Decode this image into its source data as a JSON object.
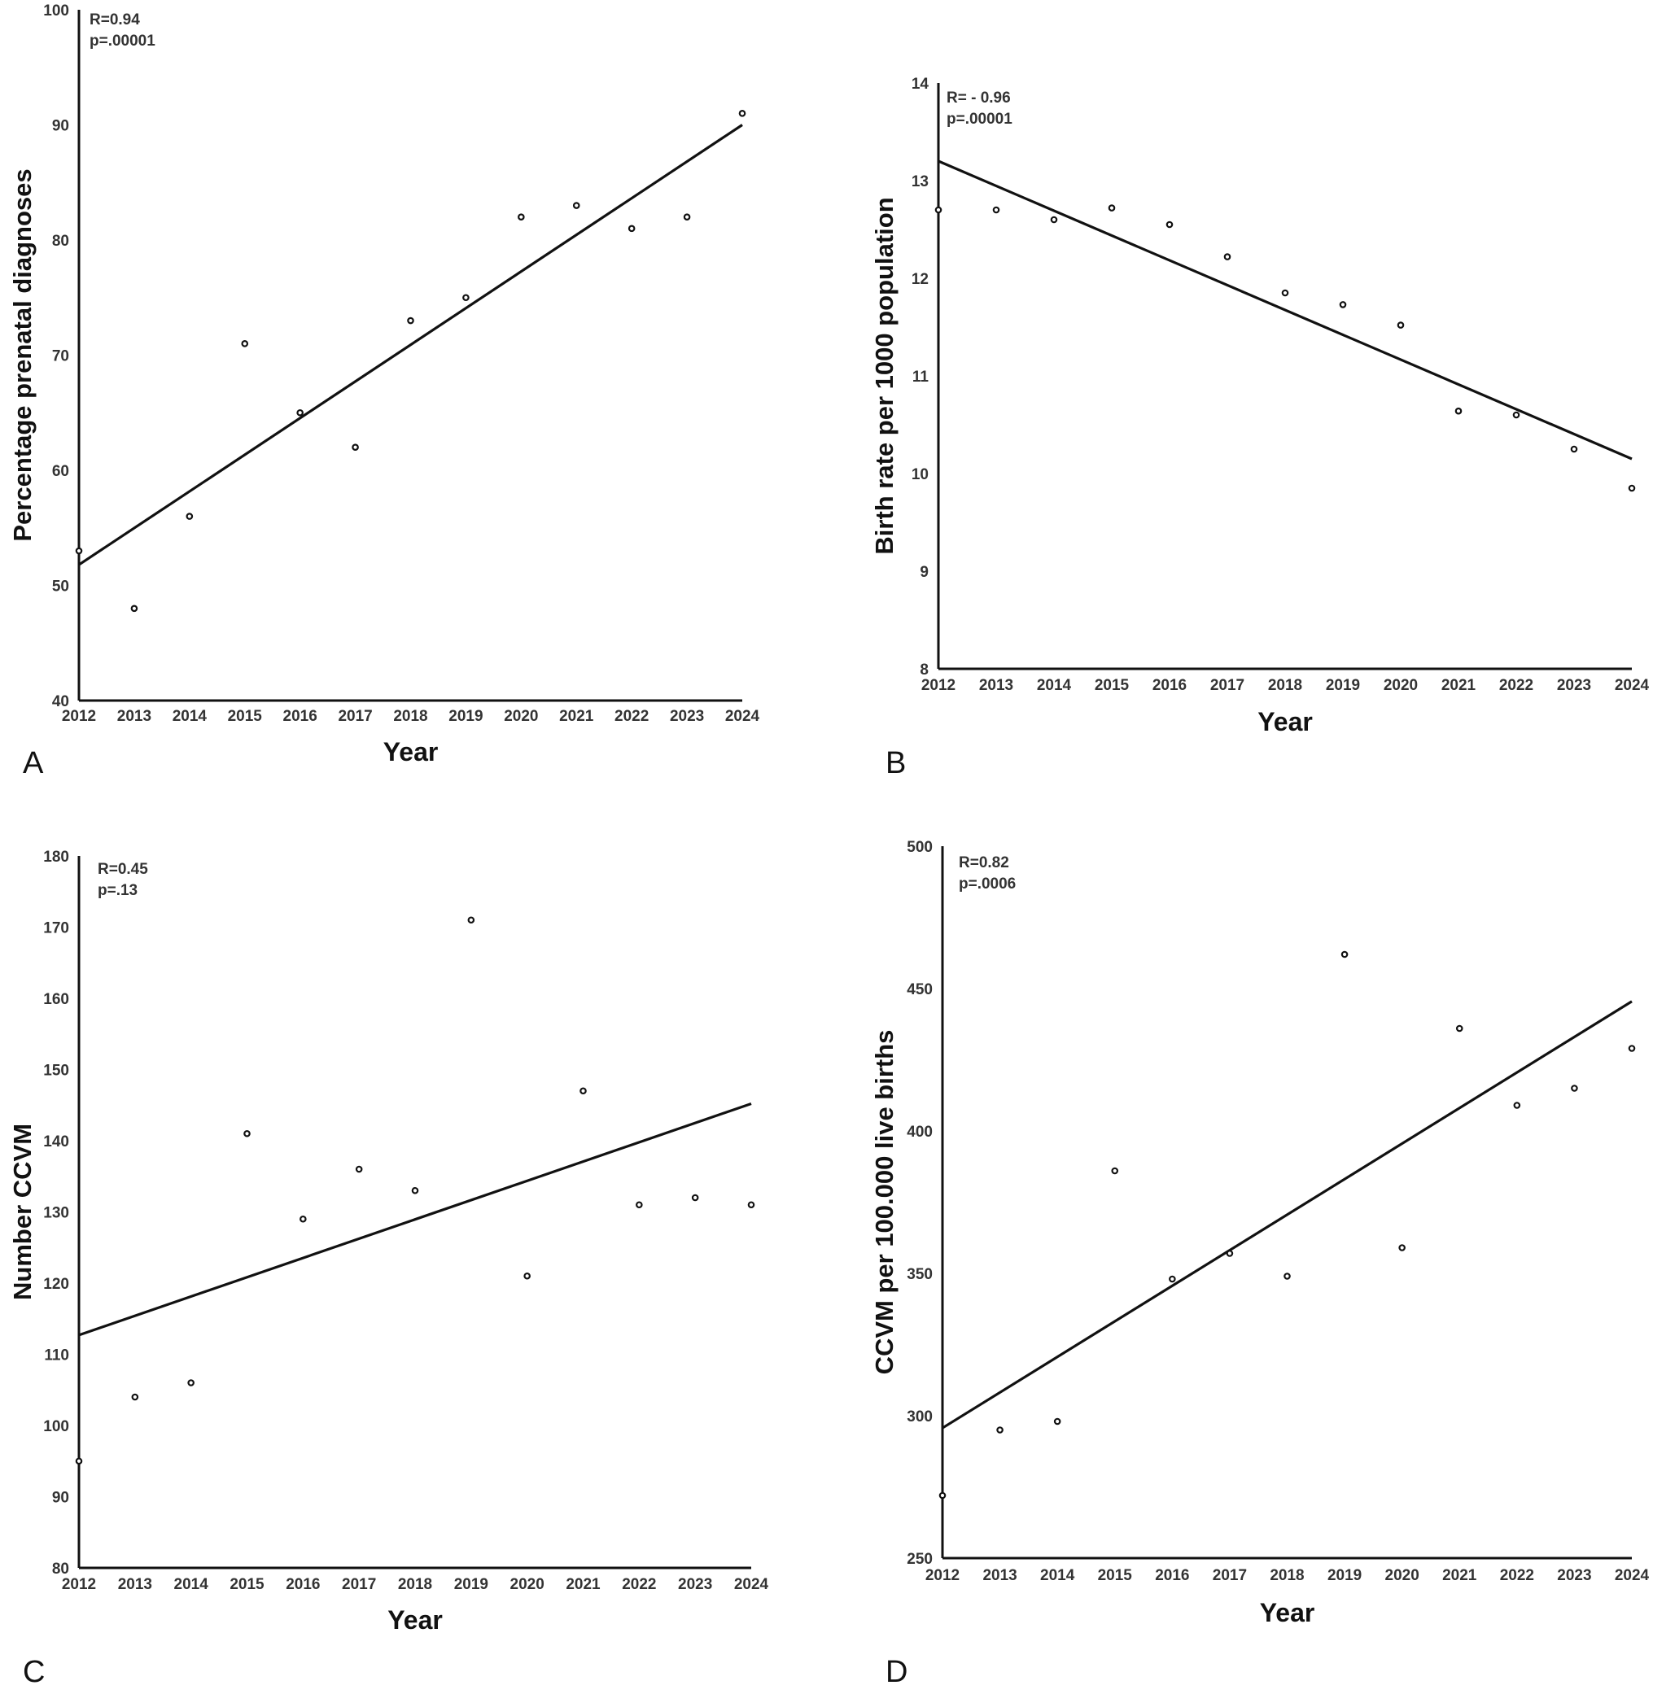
{
  "chart_data": [
    {
      "type": "scatter",
      "panel": "A",
      "xlabel": "Year",
      "ylabel": "Percentage prenatal diagnoses",
      "ylim": [
        40,
        100
      ],
      "yticks": [
        40,
        50,
        60,
        70,
        80,
        90,
        100
      ],
      "x": [
        2012,
        2013,
        2014,
        2015,
        2016,
        2017,
        2018,
        2019,
        2020,
        2021,
        2022,
        2023,
        2024
      ],
      "y": [
        53,
        48,
        56,
        71,
        65,
        62,
        73,
        75,
        82,
        83,
        81,
        82,
        91
      ],
      "trendline": [
        [
          2012,
          51.8
        ],
        [
          2024,
          90.0
        ]
      ],
      "annotation": [
        "R=0.94",
        "p=.00001"
      ]
    },
    {
      "type": "scatter",
      "panel": "B",
      "xlabel": "Year",
      "ylabel": "Birth rate per 1000 population",
      "ylim": [
        8,
        14
      ],
      "yticks": [
        8,
        9,
        10,
        11,
        12,
        13,
        14
      ],
      "x": [
        2012,
        2013,
        2014,
        2015,
        2016,
        2017,
        2018,
        2019,
        2020,
        2021,
        2022,
        2023,
        2024
      ],
      "y": [
        12.7,
        12.7,
        12.6,
        12.72,
        12.55,
        12.22,
        11.85,
        11.73,
        11.52,
        10.64,
        10.6,
        10.25,
        9.85
      ],
      "trendline": [
        [
          2012,
          13.2
        ],
        [
          2024,
          10.15
        ]
      ],
      "annotation": [
        "R= - 0.96",
        "p=.00001"
      ]
    },
    {
      "type": "scatter",
      "panel": "C",
      "xlabel": "Year",
      "ylabel": "Number CCVM",
      "ylim": [
        80,
        180
      ],
      "yticks": [
        80,
        90,
        100,
        110,
        120,
        130,
        140,
        150,
        160,
        170,
        180
      ],
      "x": [
        2012,
        2013,
        2014,
        2015,
        2016,
        2017,
        2018,
        2019,
        2020,
        2021,
        2022,
        2023,
        2024
      ],
      "y": [
        95,
        104,
        106,
        141,
        129,
        136,
        133,
        171,
        121,
        147,
        131,
        132,
        131
      ],
      "trendline": [
        [
          2012,
          112.7
        ],
        [
          2024,
          145.2
        ]
      ],
      "annotation": [
        "R=0.45",
        "p=.13"
      ]
    },
    {
      "type": "scatter",
      "panel": "D",
      "xlabel": "Year",
      "ylabel": "CCVM per 100.000 live births",
      "ylim": [
        250,
        500
      ],
      "yticks": [
        250,
        300,
        350,
        400,
        450,
        500
      ],
      "x": [
        2012,
        2013,
        2014,
        2015,
        2016,
        2017,
        2018,
        2019,
        2020,
        2021,
        2022,
        2023,
        2024
      ],
      "y": [
        272,
        295,
        298,
        386,
        348,
        357,
        349,
        462,
        359,
        436,
        409,
        415,
        429
      ],
      "trendline": [
        [
          2012,
          295.7
        ],
        [
          2024,
          445.5
        ]
      ],
      "annotation": [
        "R=0.82",
        "p=.0006"
      ]
    }
  ]
}
